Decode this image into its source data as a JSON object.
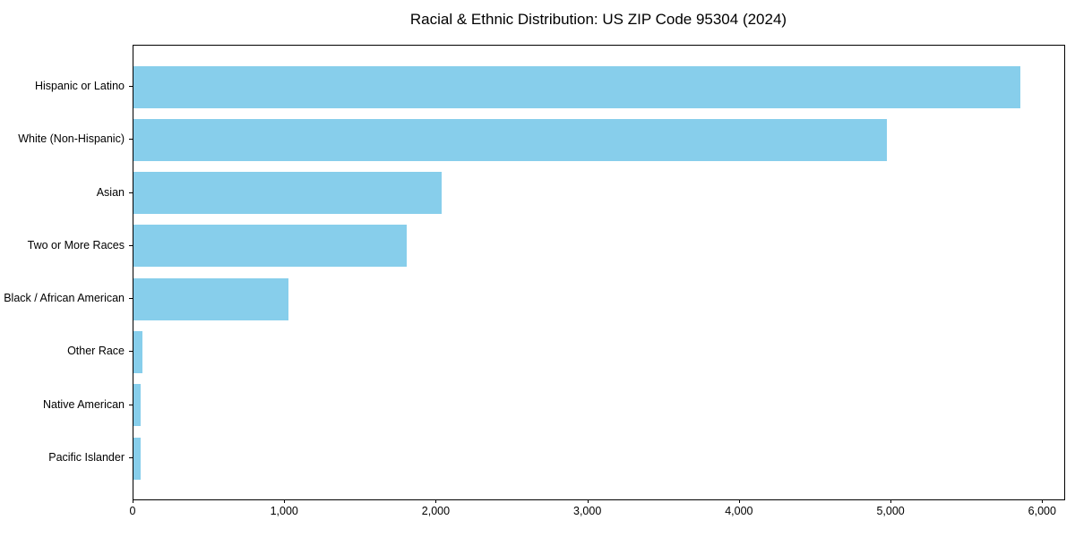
{
  "chart_data": {
    "type": "bar",
    "orientation": "horizontal",
    "title": "Racial & Ethnic Distribution: US ZIP Code 95304 (2024)",
    "categories": [
      "Hispanic or Latino",
      "White (Non-Hispanic)",
      "Asian",
      "Two or More Races",
      "Black / African American",
      "Other Race",
      "Native American",
      "Pacific Islander"
    ],
    "values": [
      5850,
      4970,
      2030,
      1800,
      1020,
      60,
      50,
      45
    ],
    "xlabel": "",
    "ylabel": "",
    "xlim": [
      0,
      6140
    ],
    "xticks": [
      0,
      1000,
      2000,
      3000,
      4000,
      5000,
      6000
    ],
    "xtick_labels": [
      "0",
      "1,000",
      "2,000",
      "3,000",
      "4,000",
      "5,000",
      "6,000"
    ],
    "bar_color": "#87CEEB",
    "axis_color": "#000000",
    "background_color": "#ffffff",
    "grid": false,
    "legend": null
  }
}
